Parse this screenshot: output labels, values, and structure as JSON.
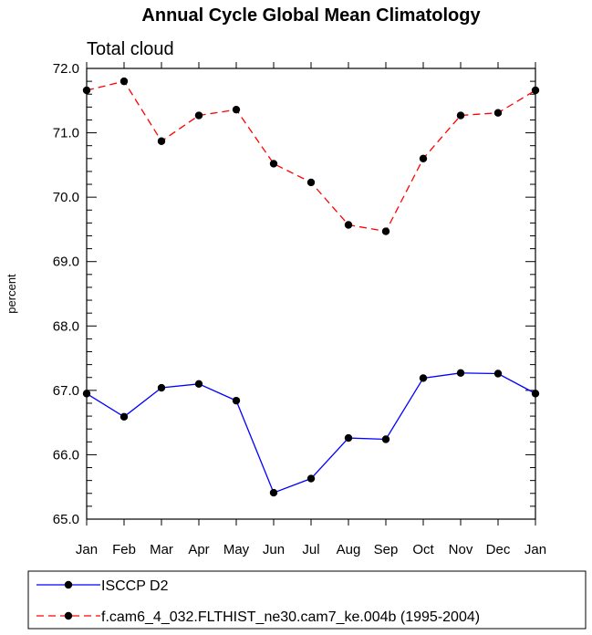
{
  "chart_data": {
    "type": "line",
    "title": "Annual Cycle Global Mean Climatology",
    "subtitle": "Total cloud",
    "xlabel": "",
    "ylabel": "percent",
    "categories": [
      "Jan",
      "Feb",
      "Mar",
      "Apr",
      "May",
      "Jun",
      "Jul",
      "Aug",
      "Sep",
      "Oct",
      "Nov",
      "Dec",
      "Jan"
    ],
    "y_ticks": [
      "65.0",
      "66.0",
      "67.0",
      "68.0",
      "69.0",
      "70.0",
      "71.0",
      "72.0"
    ],
    "ylim": [
      65.0,
      72.0
    ],
    "grid": false,
    "legend_position": "bottom",
    "series": [
      {
        "name": "ISCCP D2",
        "color": "#0000ff",
        "line_style": "solid",
        "marker": "filled-circle",
        "values": [
          66.95,
          66.59,
          67.04,
          67.1,
          66.84,
          65.41,
          65.63,
          66.26,
          66.24,
          67.19,
          67.27,
          67.26,
          66.95
        ]
      },
      {
        "name": "f.cam6_4_032.FLTHIST_ne30.cam7_ke.004b (1995-2004)",
        "color": "#ff0000",
        "line_style": "dashed",
        "marker": "filled-circle",
        "values": [
          71.66,
          71.8,
          70.87,
          71.27,
          71.36,
          70.52,
          70.23,
          69.57,
          69.47,
          70.6,
          71.27,
          71.31,
          71.66
        ]
      }
    ]
  }
}
